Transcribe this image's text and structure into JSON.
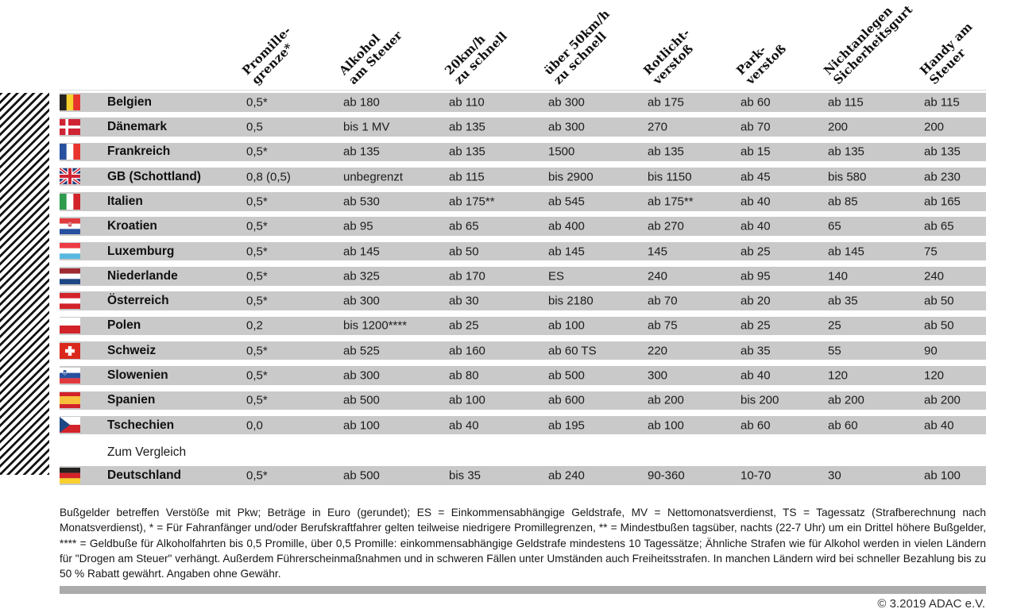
{
  "chart_data": {
    "type": "table",
    "title": "",
    "columns": [
      {
        "id": "promillegrenze",
        "label": "Promille-\ngrenze*"
      },
      {
        "id": "alkohol-am-steuer",
        "label": "Alkohol\nam Steuer"
      },
      {
        "id": "20kmh-zu-schnell",
        "label": "20km/h\nzu schnell"
      },
      {
        "id": "ueber-50kmh-zu-schnell",
        "label": "über 50km/h\nzu schnell"
      },
      {
        "id": "rotlichtverstoss",
        "label": "Rotlicht-\nverstoß"
      },
      {
        "id": "parkverstoss",
        "label": "Park-\nverstoß"
      },
      {
        "id": "nichtanlegen-sicherheitsgurt",
        "label": "Nichtanlegen\nSicherheitsgurt"
      },
      {
        "id": "handy-am-steuer",
        "label": "Handy am\nSteuer"
      }
    ],
    "rows": [
      {
        "country": "Belgien",
        "flag": "be",
        "values": [
          "0,5*",
          "ab 180",
          "ab 110",
          "ab 300",
          "ab 175",
          "ab 60",
          "ab 115",
          "ab 115"
        ]
      },
      {
        "country": "Dänemark",
        "flag": "dk",
        "values": [
          "0,5",
          "bis 1 MV",
          "ab 135",
          "ab 300",
          "270",
          "ab 70",
          "200",
          "200"
        ]
      },
      {
        "country": "Frankreich",
        "flag": "fr",
        "values": [
          "0,5*",
          "ab 135",
          "ab 135",
          "1500",
          "ab 135",
          "ab 15",
          "ab 135",
          "ab 135"
        ]
      },
      {
        "country": "GB (Schottland)",
        "flag": "gb",
        "values": [
          "0,8 (0,5)",
          "unbegrenzt",
          "ab 115",
          "bis 2900",
          "bis 1150",
          "ab 45",
          "bis 580",
          "ab 230"
        ]
      },
      {
        "country": "Italien",
        "flag": "it",
        "values": [
          "0,5*",
          "ab 530",
          "ab 175**",
          "ab 545",
          "ab 175**",
          "ab 40",
          "ab 85",
          "ab 165"
        ]
      },
      {
        "country": "Kroatien",
        "flag": "hr",
        "values": [
          "0,5*",
          "ab 95",
          "ab 65",
          "ab 400",
          "ab 270",
          "ab 40",
          "65",
          "ab 65"
        ]
      },
      {
        "country": "Luxemburg",
        "flag": "lu",
        "values": [
          "0,5*",
          "ab 145",
          "ab 50",
          "ab 145",
          "145",
          "ab 25",
          "ab 145",
          "75"
        ]
      },
      {
        "country": "Niederlande",
        "flag": "nl",
        "values": [
          "0,5*",
          "ab 325",
          "ab 170",
          "ES",
          "240",
          "ab 95",
          "140",
          "240"
        ]
      },
      {
        "country": "Österreich",
        "flag": "at",
        "values": [
          "0,5*",
          "ab 300",
          "ab 30",
          "bis 2180",
          "ab 70",
          "ab 20",
          "ab 35",
          "ab 50"
        ]
      },
      {
        "country": "Polen",
        "flag": "pl",
        "values": [
          "0,2",
          "bis 1200****",
          "ab 25",
          "ab 100",
          "ab 75",
          "ab 25",
          "25",
          "ab 50"
        ]
      },
      {
        "country": "Schweiz",
        "flag": "ch",
        "values": [
          "0,5*",
          "ab 525",
          "ab 160",
          "ab 60 TS",
          "220",
          "ab 35",
          "55",
          "90"
        ]
      },
      {
        "country": "Slowenien",
        "flag": "si",
        "values": [
          "0,5*",
          "ab 300",
          "ab 80",
          "ab 500",
          "300",
          "ab 40",
          "120",
          "120"
        ]
      },
      {
        "country": "Spanien",
        "flag": "es",
        "values": [
          "0,5*",
          "ab 500",
          "ab 100",
          "ab 600",
          "ab 200",
          "bis 200",
          "ab 200",
          "ab 200"
        ]
      },
      {
        "country": "Tschechien",
        "flag": "cz",
        "values": [
          "0,0",
          "ab 100",
          "ab 40",
          "ab 195",
          "ab 100",
          "ab 60",
          "ab 60",
          "ab 40"
        ]
      }
    ],
    "compare_label": "Zum Vergleich",
    "compare_row": {
      "country": "Deutschland",
      "flag": "de",
      "values": [
        "0,5*",
        "ab 500",
        "bis 35",
        "ab 240",
        "90-360",
        "10-70",
        "30",
        "ab 100"
      ]
    },
    "layout_hints": {
      "grid": "off",
      "row_shading": "alternating-solid-gray",
      "header_rotation_deg": -45
    }
  },
  "footnote": "Bußgelder betreffen Verstöße mit Pkw; Beträge in Euro (gerundet); ES = Einkommensabhängige Geldstrafe, MV = Nettomonatsverdienst, TS = Tagessatz (Strafberechnung nach Monatsverdienst), * = Für Fahranfänger und/oder Berufskraftfahrer gelten teilweise niedrigere Promillegrenzen, ** = Mindestbußen tagsüber, nachts (22-7 Uhr) um ein Drittel höhere Bußgelder, **** = Geldbuße für Alkoholfahrten bis 0,5 Promille, über 0,5 Promille: einkommensabhängige Geldstrafe mindestens 10 Tagessätze; Ähnliche Strafen wie für Alkohol werden in vielen Ländern für \"Drogen am Steuer\" verhängt. Außerdem Führerscheinmaßnahmen und in schweren Fällen unter Umständen auch Freiheitsstrafen. In manchen Ländern wird bei schneller Bezahlung bis zu 50 % Rabatt gewährt. Angaben ohne Gewähr.",
  "copyright": "© 3.2019 ADAC e.V.",
  "colors": {
    "row_bg": "#c9c9c9",
    "bottom_bar": "#ababab",
    "text": "#1a1a1a"
  }
}
